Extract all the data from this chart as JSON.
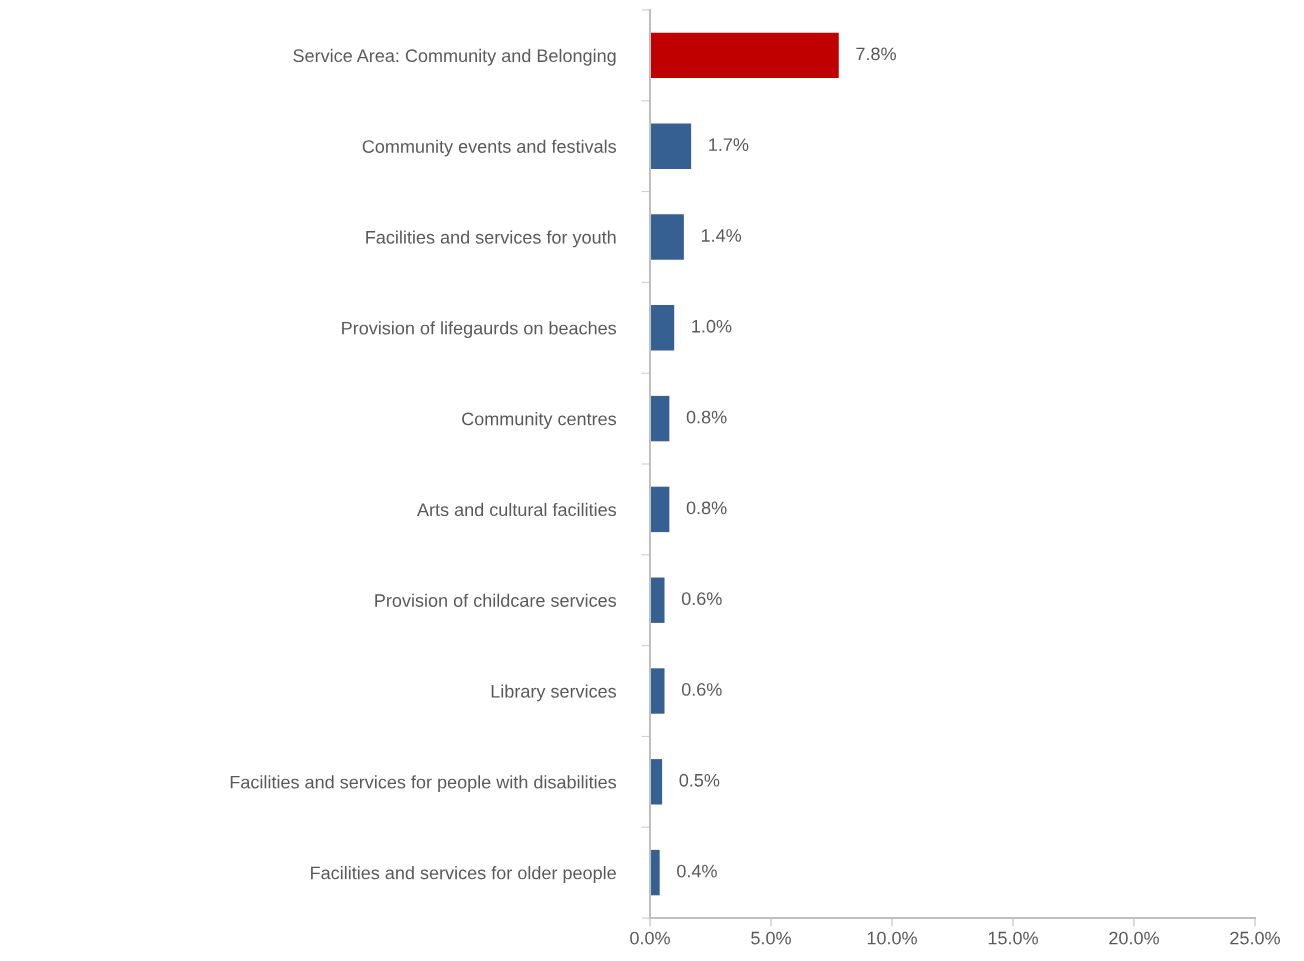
{
  "chart_data": {
    "type": "bar",
    "orientation": "horizontal",
    "categories": [
      "Service Area: Community and Belonging",
      "Community events and festivals",
      "Facilities and services for youth",
      "Provision of lifegaurds on beaches",
      "Community centres",
      "Arts and cultural facilities",
      "Provision of childcare services",
      "Library services",
      "Facilities and services for people with disabilities",
      "Facilities and services for older people"
    ],
    "values": [
      7.8,
      1.7,
      1.4,
      1.0,
      0.8,
      0.8,
      0.6,
      0.6,
      0.5,
      0.4
    ],
    "value_labels": [
      "7.8%",
      "1.7%",
      "1.4%",
      "1.0%",
      "0.8%",
      "0.8%",
      "0.6%",
      "0.6%",
      "0.5%",
      "0.4%"
    ],
    "colors": [
      "#c00000",
      "#366092",
      "#366092",
      "#366092",
      "#366092",
      "#366092",
      "#366092",
      "#366092",
      "#366092",
      "#366092"
    ],
    "xlim": [
      0,
      25
    ],
    "xticks": [
      {
        "value": 0,
        "label": "0.0%"
      },
      {
        "value": 5,
        "label": "5.0%"
      },
      {
        "value": 10,
        "label": "10.0%"
      },
      {
        "value": 15,
        "label": "15.0%"
      },
      {
        "value": 20,
        "label": "20.0%"
      },
      {
        "value": 25,
        "label": "25.0%"
      }
    ],
    "grid": false,
    "legend": false
  }
}
